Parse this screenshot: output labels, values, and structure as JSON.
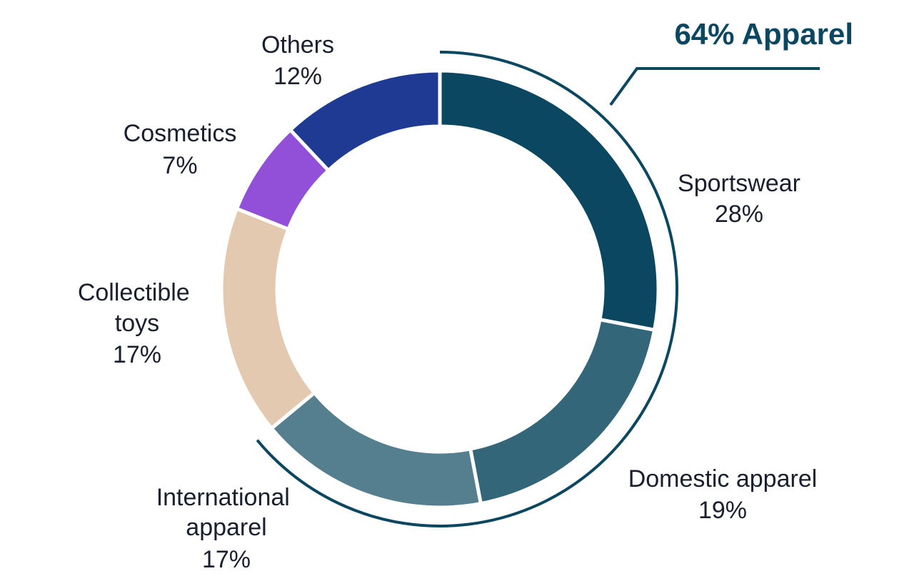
{
  "chart_data": {
    "type": "pie",
    "variant": "donut",
    "unit": "%",
    "slices": [
      {
        "label": "Sportswear",
        "value": 28,
        "display": "28%",
        "color": "#0b4760"
      },
      {
        "label": "Domestic apparel",
        "value": 19,
        "display": "19%",
        "color": "#336679"
      },
      {
        "label": "International apparel",
        "value": 17,
        "display": "17%",
        "color": "#557f8e"
      },
      {
        "label": "Collectible toys",
        "value": 17,
        "display": "17%",
        "color": "#e2c9af"
      },
      {
        "label": "Cosmetics",
        "value": 7,
        "display": "7%",
        "color": "#924fd7"
      },
      {
        "label": "Others",
        "value": 12,
        "display": "12%",
        "color": "#1f3a93"
      }
    ],
    "group_annotation": {
      "label": "64% Apparel",
      "covers": [
        "Sportswear",
        "Domestic apparel",
        "International apparel"
      ],
      "color": "#0b4760"
    },
    "legend": "none"
  }
}
